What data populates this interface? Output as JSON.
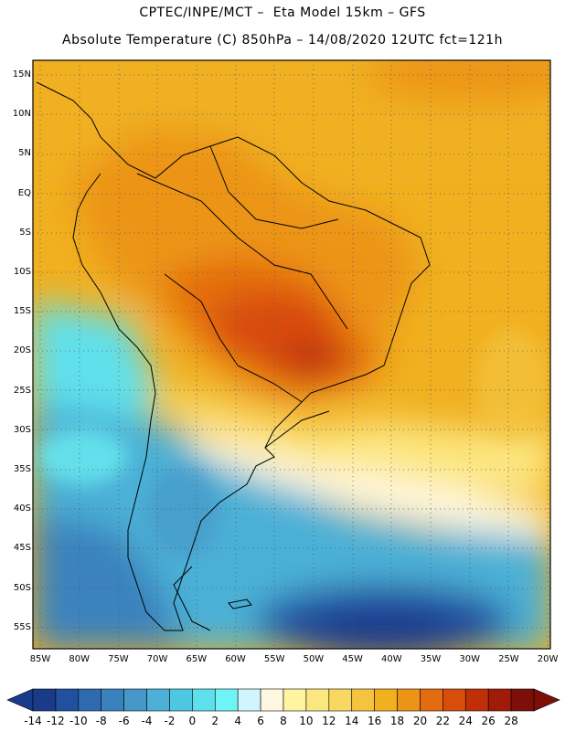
{
  "title_line1": "CPTEC/INPE/MCT –  Eta Model 15km – GFS",
  "title_line2": "Absolute Temperature (C) 850hPa – 14/08/2020 12UTC fct=121h",
  "lat_labels": [
    "15N",
    "10N",
    "5N",
    "EQ",
    "5S",
    "10S",
    "15S",
    "20S",
    "25S",
    "30S",
    "35S",
    "40S",
    "45S",
    "50S",
    "55S"
  ],
  "lon_labels": [
    "85W",
    "80W",
    "75W",
    "70W",
    "65W",
    "60W",
    "55W",
    "50W",
    "45W",
    "40W",
    "35W",
    "30W",
    "25W",
    "20W"
  ],
  "colorbar": {
    "labels": [
      "-14",
      "-12",
      "-10",
      "-8",
      "-6",
      "-4",
      "-2",
      "0",
      "2",
      "4",
      "6",
      "8",
      "10",
      "12",
      "14",
      "16",
      "18",
      "20",
      "22",
      "24",
      "26",
      "28"
    ],
    "colors": [
      "#1a3a8a",
      "#2250a0",
      "#2e6ab0",
      "#3a82be",
      "#4698c8",
      "#4cb0d6",
      "#4ec8e2",
      "#5ee0ec",
      "#6ef4f4",
      "#cff6ff",
      "#fff8e0",
      "#fff4a0",
      "#fce680",
      "#f8d860",
      "#f4c440",
      "#f0b020",
      "#ec9418",
      "#e46c10",
      "#d84c0c",
      "#c03008",
      "#a01c08",
      "#7c1008"
    ]
  }
}
